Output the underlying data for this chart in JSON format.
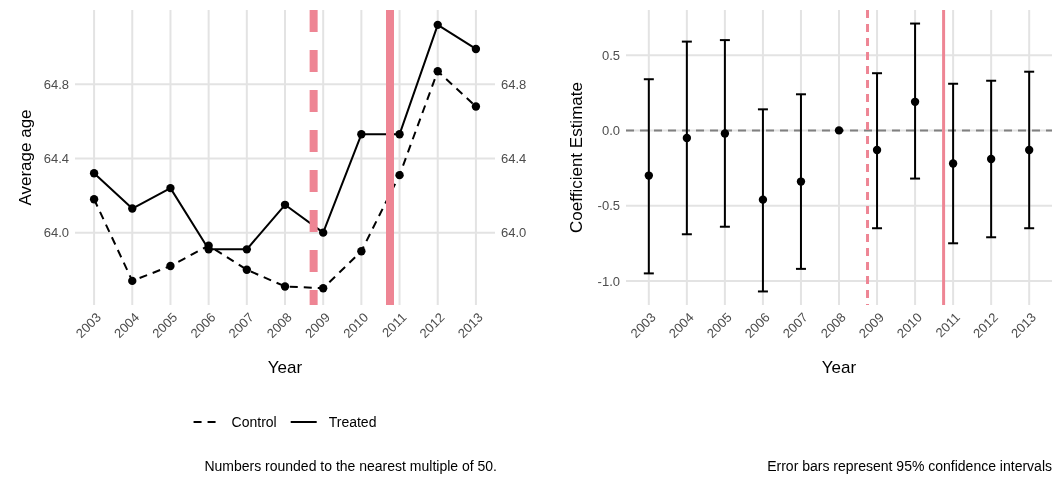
{
  "chart_data": [
    {
      "type": "line",
      "xlabel": "Year",
      "ylabel": "Average age",
      "x": [
        2003,
        2004,
        2005,
        2006,
        2007,
        2008,
        2009,
        2010,
        2011,
        2012,
        2013
      ],
      "xlim": [
        2002.5,
        2013.5
      ],
      "xticks": [
        2003,
        2004,
        2005,
        2006,
        2007,
        2008,
        2009,
        2010,
        2011,
        2012,
        2013
      ],
      "ylim": [
        63.61,
        65.2
      ],
      "yticks": [
        {
          "value": 64,
          "label": "64.0"
        },
        {
          "value": 64.4,
          "label": "64.4"
        },
        {
          "value": 64.8,
          "label": "64.8"
        }
      ],
      "y2lim": [
        63.61,
        65.2
      ],
      "y2ticks": [
        {
          "value": 64,
          "label": "64.0"
        },
        {
          "value": 64.4,
          "label": "64.4"
        },
        {
          "value": 64.8,
          "label": "64.8"
        }
      ],
      "grid": true,
      "marker": "circle",
      "legend": "bottom",
      "series": [
        {
          "name": "Control",
          "color": "#000000",
          "line_style": "dashed",
          "values": [
            64.18,
            63.74,
            63.82,
            63.93,
            63.8,
            63.71,
            63.7,
            63.9,
            64.31,
            64.87,
            64.68
          ]
        },
        {
          "name": "Treated",
          "color": "#000000",
          "line_style": "solid",
          "values": [
            64.32,
            64.13,
            64.24,
            63.91,
            63.91,
            64.15,
            64.0,
            64.53,
            64.53,
            65.12,
            64.99
          ]
        }
      ],
      "ref_lines": [
        {
          "axis": "x",
          "value": 2008.75,
          "color": "#ee8594",
          "line_style": "dashed"
        },
        {
          "axis": "x",
          "value": 2010.75,
          "color": "#ee8594",
          "line_style": "solid"
        }
      ],
      "annotations": [
        "Numbers rounded to the nearest multiple of 50."
      ]
    },
    {
      "type": "scatter",
      "xlabel": "Year",
      "ylabel": "Coefficient Estimate",
      "x": [
        2003,
        2004,
        2005,
        2006,
        2007,
        2008,
        2009,
        2010,
        2011,
        2012,
        2013
      ],
      "xlim": [
        2002.4,
        2013.6
      ],
      "xticks": [
        2003,
        2004,
        2005,
        2006,
        2007,
        2008,
        2009,
        2010,
        2011,
        2012,
        2013
      ],
      "ylim": [
        -1.16,
        0.8
      ],
      "yticks": [
        {
          "value": -1,
          "label": "-1.0"
        },
        {
          "value": -0.5,
          "label": "-0.5"
        },
        {
          "value": 0,
          "label": "0.0"
        },
        {
          "value": 0.5,
          "label": "0.5"
        }
      ],
      "grid": true,
      "marker": "circle",
      "series": [
        {
          "color": "#000000",
          "values": [
            -0.3,
            -0.05,
            -0.02,
            -0.46,
            -0.34,
            0,
            -0.13,
            0.19,
            -0.22,
            -0.19,
            -0.13
          ],
          "errors": [
            [
              -0.95,
              0.34
            ],
            [
              -0.69,
              0.59
            ],
            [
              -0.64,
              0.6
            ],
            [
              -1.07,
              0.14
            ],
            [
              -0.92,
              0.24
            ],
            null,
            [
              -0.65,
              0.38
            ],
            [
              -0.32,
              0.71
            ],
            [
              -0.75,
              0.31
            ],
            [
              -0.71,
              0.33
            ],
            [
              -0.65,
              0.39
            ]
          ]
        }
      ],
      "ref_lines": [
        {
          "axis": "y",
          "value": 0,
          "color": "#808080",
          "line_style": "dashed"
        },
        {
          "axis": "x",
          "value": 2008.75,
          "color": "#ee8594",
          "line_style": "dashed"
        },
        {
          "axis": "x",
          "value": 2010.75,
          "color": "#ee8594",
          "line_style": "solid"
        }
      ],
      "annotations": [
        "Error bars represent 95% confidence intervals"
      ]
    }
  ]
}
